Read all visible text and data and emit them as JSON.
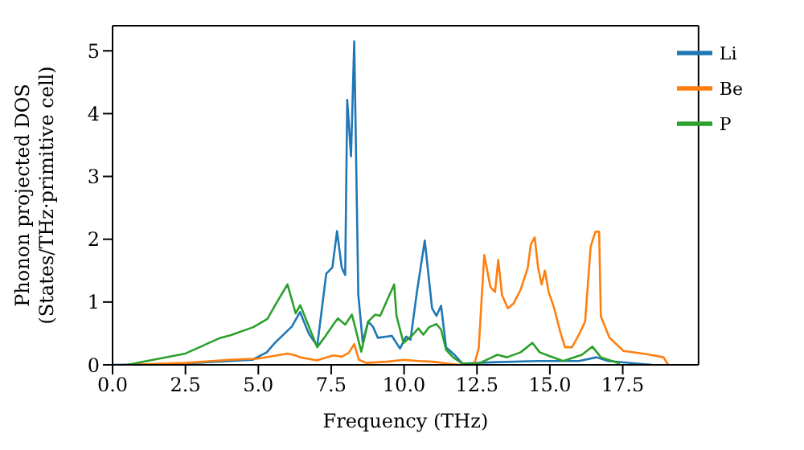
{
  "chart_data": {
    "type": "line",
    "xlabel": "Frequency (THz)",
    "ylabel": "Phonon projected DOS\n(States/THz·primitive cell)",
    "xlim": [
      0,
      20.1
    ],
    "xticks": [
      {
        "value": 0,
        "label": "0.0"
      },
      2.5,
      {
        "value": 5,
        "label": "5.0"
      },
      7.5,
      {
        "value": 10,
        "label": "10.0"
      },
      12.5,
      {
        "value": 15,
        "label": "15.0"
      },
      17.5
    ],
    "ylim": [
      0,
      5.4
    ],
    "yticks": [
      0,
      1,
      2,
      3,
      4,
      5
    ],
    "grid": false,
    "legend": "top right",
    "marker": "none",
    "line_style": "solid",
    "series": [
      {
        "name": "Li",
        "color": "#1f77b4",
        "x": [
          0,
          2.4,
          4.8,
          5.29,
          5.57,
          6.15,
          6.43,
          6.73,
          7.02,
          7.33,
          7.54,
          7.7,
          7.86,
          7.98,
          8.05,
          8.18,
          8.29,
          8.43,
          8.58,
          8.77,
          8.94,
          9.1,
          9.58,
          9.86,
          10.07,
          10.22,
          10.44,
          10.71,
          10.96,
          11.11,
          11.27,
          11.44,
          11.75,
          12.0,
          13,
          14.6,
          16,
          16.6,
          17,
          18,
          18.5
        ],
        "values": [
          0,
          0.02,
          0.08,
          0.2,
          0.35,
          0.61,
          0.84,
          0.5,
          0.3,
          1.45,
          1.55,
          2.13,
          1.55,
          1.43,
          4.22,
          3.32,
          5.15,
          1.12,
          0.36,
          0.69,
          0.6,
          0.43,
          0.46,
          0.26,
          0.45,
          0.4,
          1.16,
          1.98,
          0.9,
          0.78,
          0.94,
          0.28,
          0.15,
          0.02,
          0.04,
          0.06,
          0.06,
          0.12,
          0.06,
          0.02,
          0
        ]
      },
      {
        "name": "Be",
        "color": "#ff7f0e",
        "x": [
          0.5,
          2.5,
          4.0,
          5.0,
          6.0,
          6.28,
          6.43,
          7.01,
          7.57,
          7.86,
          8.1,
          8.29,
          8.45,
          8.7,
          9.4,
          10.0,
          10.5,
          10.97,
          11.5,
          11.9,
          12.4,
          12.56,
          12.75,
          12.96,
          13.12,
          13.23,
          13.36,
          13.56,
          13.76,
          14.0,
          14.24,
          14.35,
          14.48,
          14.6,
          14.72,
          14.83,
          14.96,
          15.15,
          15.36,
          15.52,
          15.76,
          16.0,
          16.21,
          16.4,
          16.56,
          16.69,
          16.75,
          17.05,
          17.53,
          18.33,
          18.9,
          19.06
        ],
        "values": [
          0,
          0.03,
          0.08,
          0.1,
          0.18,
          0.15,
          0.12,
          0.07,
          0.15,
          0.13,
          0.19,
          0.33,
          0.08,
          0.03,
          0.05,
          0.08,
          0.06,
          0.05,
          0.02,
          0,
          0,
          0.26,
          1.75,
          1.24,
          1.16,
          1.67,
          1.11,
          0.9,
          0.98,
          1.2,
          1.54,
          1.92,
          2.03,
          1.54,
          1.28,
          1.5,
          1.16,
          0.9,
          0.52,
          0.28,
          0.28,
          0.48,
          0.69,
          1.88,
          2.12,
          2.12,
          0.77,
          0.43,
          0.22,
          0.17,
          0.12,
          0
        ]
      },
      {
        "name": "P",
        "color": "#2ca02c",
        "x": [
          0.5,
          2.5,
          3.7,
          4.04,
          4.83,
          5.31,
          5.64,
          6.0,
          6.28,
          6.44,
          7.02,
          7.26,
          7.57,
          7.73,
          7.98,
          8.21,
          8.37,
          8.53,
          8.77,
          9.01,
          9.18,
          9.66,
          9.74,
          9.98,
          10.3,
          10.49,
          10.66,
          10.86,
          11.11,
          11.27,
          11.44,
          11.68,
          12.0,
          12.56,
          13.2,
          13.53,
          14.0,
          14.4,
          14.65,
          14.98,
          15.46,
          16.1,
          16.46,
          16.75,
          17.4
        ],
        "values": [
          0,
          0.18,
          0.43,
          0.47,
          0.6,
          0.73,
          1.0,
          1.28,
          0.82,
          0.95,
          0.28,
          0.43,
          0.64,
          0.74,
          0.64,
          0.8,
          0.51,
          0.21,
          0.69,
          0.8,
          0.78,
          1.28,
          0.78,
          0.35,
          0.48,
          0.58,
          0.48,
          0.6,
          0.65,
          0.56,
          0.24,
          0.12,
          0.02,
          0.02,
          0.16,
          0.12,
          0.2,
          0.35,
          0.2,
          0.14,
          0.06,
          0.16,
          0.29,
          0.12,
          0.02
        ]
      }
    ]
  }
}
